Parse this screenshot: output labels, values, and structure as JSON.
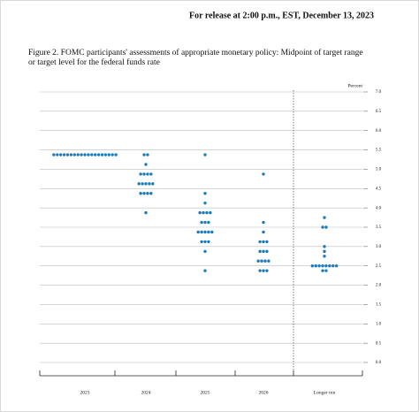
{
  "header": "For release at 2:00 p.m., EST, December 13, 2023",
  "chart_data": {
    "type": "dot",
    "title": "Figure 2.  FOMC participants' assessments of appropriate monetary policy:  Midpoint of target range or target level for the federal funds rate",
    "y_unit_label": "Percent",
    "color": "#1b7bb8",
    "categories": [
      "2023",
      "2024",
      "2025",
      "2026",
      "Longer run"
    ],
    "values": [
      [
        5.375,
        5.375,
        5.375,
        5.375,
        5.375,
        5.375,
        5.375,
        5.375,
        5.375,
        5.375,
        5.375,
        5.375,
        5.375,
        5.375,
        5.375,
        5.375,
        5.375,
        5.375,
        5.375
      ],
      [
        5.375,
        5.375,
        5.125,
        4.875,
        4.875,
        4.875,
        4.875,
        4.625,
        4.625,
        4.625,
        4.625,
        4.625,
        4.375,
        4.375,
        4.375,
        4.375,
        3.875
      ],
      [
        5.375,
        4.375,
        4.125,
        3.875,
        3.875,
        3.875,
        3.875,
        3.625,
        3.625,
        3.625,
        3.375,
        3.375,
        3.375,
        3.375,
        3.375,
        3.125,
        3.125,
        3.125,
        2.875,
        2.375
      ],
      [
        4.875,
        3.625,
        3.375,
        3.125,
        3.125,
        3.125,
        2.875,
        2.875,
        2.875,
        2.625,
        2.625,
        2.625,
        2.625,
        2.375,
        2.375,
        2.375
      ],
      [
        3.75,
        3.5,
        3.5,
        3.0,
        2.875,
        2.75,
        2.5,
        2.5,
        2.5,
        2.5,
        2.5,
        2.5,
        2.5,
        2.5,
        2.375,
        2.375
      ]
    ],
    "ylim": [
      0,
      7
    ],
    "yticks": [
      {
        "value": 0,
        "label": "0.0"
      },
      0.5,
      {
        "value": 1,
        "label": "1.0"
      },
      1.5,
      {
        "value": 2,
        "label": "2.0"
      },
      2.5,
      {
        "value": 3,
        "label": "3.0"
      },
      3.5,
      {
        "value": 4,
        "label": "4.0"
      },
      4.5,
      {
        "value": 5,
        "label": "5.0"
      },
      5.5,
      {
        "value": 6,
        "label": "6.0"
      },
      6.5,
      {
        "value": 7,
        "label": "7.0"
      }
    ],
    "grid": true
  }
}
